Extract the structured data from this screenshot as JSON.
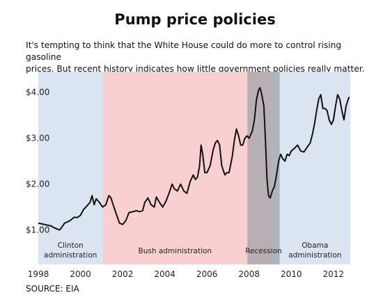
{
  "chart_data": {
    "type": "line",
    "title": "Pump price policies",
    "subtitle_lines": [
      "It's tempting to think that the White House could do more to control rising gasoline",
      "prices. But recent history indicates how little government policies really matter."
    ],
    "source": "SOURCE: EIA",
    "xlim": [
      1998,
      2012.8
    ],
    "ylim": [
      0.25,
      4.45
    ],
    "x_ticks": [
      1998,
      2000,
      2002,
      2004,
      2006,
      2008,
      2010,
      2012
    ],
    "x_tick_labels": [
      "1998",
      "2000",
      "2002",
      "2004",
      "2006",
      "2008",
      "2010",
      "2012"
    ],
    "y_ticks": [
      1.0,
      2.0,
      3.0,
      4.0
    ],
    "y_tick_labels": [
      "$1.00",
      "$2.00",
      "$3.00",
      "$4.00"
    ],
    "bands": [
      {
        "name": "clinton",
        "label_lines": [
          "Clinton",
          "administration"
        ],
        "start": 1998,
        "end": 2001.05,
        "color": "#dbe5f1"
      },
      {
        "name": "bush",
        "label_lines": [
          "Bush administration"
        ],
        "start": 2001.05,
        "end": 2009.05,
        "color": "#f8d0d0"
      },
      {
        "name": "recession",
        "label_lines": [
          "Recession"
        ],
        "start": 2007.92,
        "end": 2009.45,
        "color": "#a0a4aa",
        "overlay_opacity": 0.75
      },
      {
        "name": "obama",
        "label_lines": [
          "Obama",
          "administration"
        ],
        "start": 2009.05,
        "end": 2012.8,
        "color": "#dbe5f1"
      }
    ],
    "series": [
      {
        "values": [
          [
            1998.0,
            1.15
          ],
          [
            1998.2,
            1.13
          ],
          [
            1998.4,
            1.11
          ],
          [
            1998.6,
            1.09
          ],
          [
            1998.75,
            1.05
          ],
          [
            1998.9,
            1.02
          ],
          [
            1999.0,
            1.0
          ],
          [
            1999.1,
            1.05
          ],
          [
            1999.25,
            1.15
          ],
          [
            1999.4,
            1.18
          ],
          [
            1999.55,
            1.22
          ],
          [
            1999.7,
            1.28
          ],
          [
            1999.85,
            1.27
          ],
          [
            2000.0,
            1.32
          ],
          [
            2000.15,
            1.45
          ],
          [
            2000.3,
            1.52
          ],
          [
            2000.45,
            1.6
          ],
          [
            2000.55,
            1.75
          ],
          [
            2000.65,
            1.55
          ],
          [
            2000.75,
            1.68
          ],
          [
            2000.9,
            1.6
          ],
          [
            2001.05,
            1.5
          ],
          [
            2001.2,
            1.55
          ],
          [
            2001.35,
            1.75
          ],
          [
            2001.45,
            1.7
          ],
          [
            2001.55,
            1.55
          ],
          [
            2001.7,
            1.35
          ],
          [
            2001.85,
            1.15
          ],
          [
            2002.0,
            1.12
          ],
          [
            2002.15,
            1.2
          ],
          [
            2002.3,
            1.38
          ],
          [
            2002.5,
            1.4
          ],
          [
            2002.65,
            1.42
          ],
          [
            2002.8,
            1.4
          ],
          [
            2002.95,
            1.42
          ],
          [
            2003.05,
            1.6
          ],
          [
            2003.2,
            1.7
          ],
          [
            2003.35,
            1.55
          ],
          [
            2003.5,
            1.5
          ],
          [
            2003.6,
            1.72
          ],
          [
            2003.75,
            1.6
          ],
          [
            2003.9,
            1.5
          ],
          [
            2004.05,
            1.62
          ],
          [
            2004.2,
            1.8
          ],
          [
            2004.35,
            2.0
          ],
          [
            2004.45,
            1.9
          ],
          [
            2004.6,
            1.85
          ],
          [
            2004.75,
            2.0
          ],
          [
            2004.9,
            1.85
          ],
          [
            2005.05,
            1.8
          ],
          [
            2005.2,
            2.05
          ],
          [
            2005.35,
            2.2
          ],
          [
            2005.45,
            2.1
          ],
          [
            2005.55,
            2.15
          ],
          [
            2005.65,
            2.4
          ],
          [
            2005.72,
            2.85
          ],
          [
            2005.8,
            2.65
          ],
          [
            2005.9,
            2.25
          ],
          [
            2006.0,
            2.25
          ],
          [
            2006.15,
            2.4
          ],
          [
            2006.3,
            2.75
          ],
          [
            2006.4,
            2.9
          ],
          [
            2006.5,
            2.95
          ],
          [
            2006.6,
            2.85
          ],
          [
            2006.7,
            2.4
          ],
          [
            2006.85,
            2.2
          ],
          [
            2006.95,
            2.25
          ],
          [
            2007.05,
            2.25
          ],
          [
            2007.2,
            2.6
          ],
          [
            2007.3,
            2.95
          ],
          [
            2007.4,
            3.2
          ],
          [
            2007.5,
            3.05
          ],
          [
            2007.6,
            2.85
          ],
          [
            2007.7,
            2.85
          ],
          [
            2007.8,
            3.0
          ],
          [
            2007.9,
            3.05
          ],
          [
            2008.0,
            3.0
          ],
          [
            2008.15,
            3.15
          ],
          [
            2008.25,
            3.4
          ],
          [
            2008.35,
            3.85
          ],
          [
            2008.45,
            4.05
          ],
          [
            2008.52,
            4.1
          ],
          [
            2008.6,
            3.95
          ],
          [
            2008.7,
            3.7
          ],
          [
            2008.78,
            2.9
          ],
          [
            2008.85,
            2.1
          ],
          [
            2008.92,
            1.75
          ],
          [
            2009.0,
            1.7
          ],
          [
            2009.1,
            1.85
          ],
          [
            2009.2,
            1.95
          ],
          [
            2009.3,
            2.2
          ],
          [
            2009.4,
            2.5
          ],
          [
            2009.5,
            2.65
          ],
          [
            2009.6,
            2.55
          ],
          [
            2009.7,
            2.5
          ],
          [
            2009.8,
            2.65
          ],
          [
            2009.9,
            2.62
          ],
          [
            2010.0,
            2.72
          ],
          [
            2010.15,
            2.78
          ],
          [
            2010.3,
            2.85
          ],
          [
            2010.45,
            2.72
          ],
          [
            2010.6,
            2.7
          ],
          [
            2010.75,
            2.8
          ],
          [
            2010.9,
            2.9
          ],
          [
            2011.0,
            3.08
          ],
          [
            2011.1,
            3.3
          ],
          [
            2011.2,
            3.6
          ],
          [
            2011.3,
            3.85
          ],
          [
            2011.4,
            3.95
          ],
          [
            2011.5,
            3.65
          ],
          [
            2011.6,
            3.65
          ],
          [
            2011.7,
            3.6
          ],
          [
            2011.8,
            3.4
          ],
          [
            2011.9,
            3.3
          ],
          [
            2012.0,
            3.4
          ],
          [
            2012.1,
            3.7
          ],
          [
            2012.2,
            3.95
          ],
          [
            2012.3,
            3.85
          ],
          [
            2012.4,
            3.6
          ],
          [
            2012.5,
            3.4
          ],
          [
            2012.6,
            3.7
          ],
          [
            2012.7,
            3.85
          ],
          [
            2012.75,
            3.9
          ]
        ],
        "color": "#111111"
      }
    ],
    "grid": false,
    "legend": "none"
  }
}
